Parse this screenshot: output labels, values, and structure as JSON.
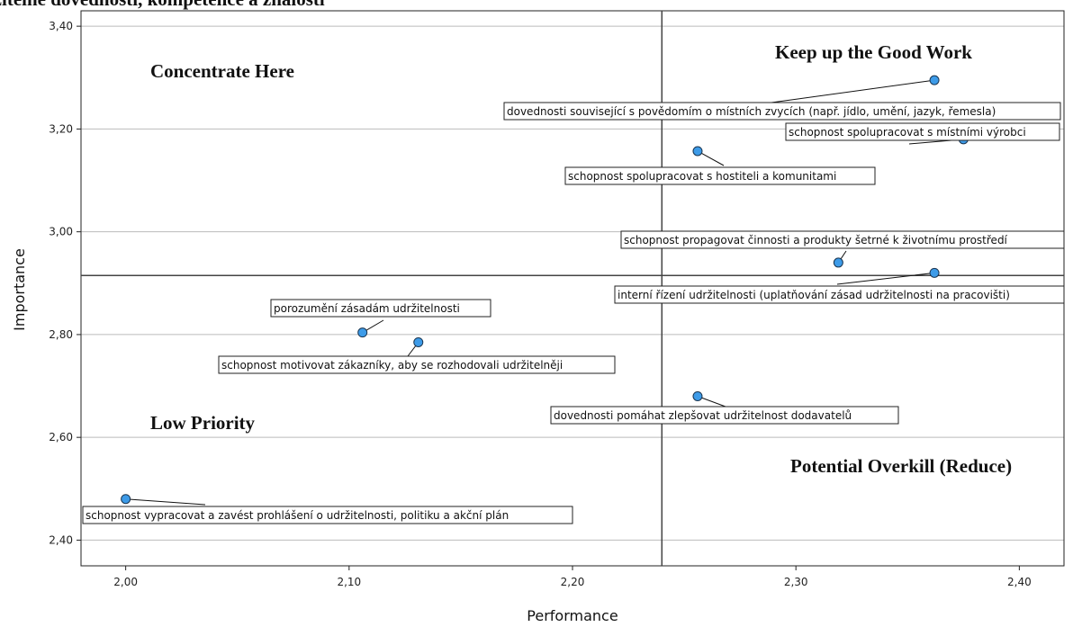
{
  "chart_data": {
    "type": "scatter",
    "title": "udržitelné dovednosti, kompetence a znalosti",
    "xlabel": "Performance",
    "ylabel": "Importance",
    "xlim": [
      1.98,
      2.42
    ],
    "ylim": [
      2.35,
      3.43
    ],
    "xticks": [
      "2,00",
      "2,10",
      "2,20",
      "2,30",
      "2,40"
    ],
    "yticks": [
      "2,40",
      "2,60",
      "2,80",
      "3,00",
      "3,20",
      "3,40"
    ],
    "grid": "horizontal",
    "reference_lines": {
      "x": 2.24,
      "y": 2.915
    },
    "quadrant_labels": {
      "top_left": "Concentrate Here",
      "top_right": "Keep up the Good Work",
      "bottom_left": "Low Priority",
      "bottom_right": "Potential Overkill (Reduce)"
    },
    "points": [
      {
        "label": "dovednosti související s povědomím o místních zvycích (např. jídlo, umění, jazyk, řemesla)",
        "x": 2.362,
        "y": 3.295
      },
      {
        "label": "schopnost spolupracovat s místními výrobci",
        "x": 2.375,
        "y": 3.18
      },
      {
        "label": "schopnost spolupracovat s hostiteli a komunitami",
        "x": 2.256,
        "y": 3.157
      },
      {
        "label": "schopnost propagovat činnosti a produkty šetrné k životnímu prostředí",
        "x": 2.319,
        "y": 2.94
      },
      {
        "label": "interní řízení udržitelnosti (uplatňování zásad udržitelnosti na pracovišti)",
        "x": 2.362,
        "y": 2.92
      },
      {
        "label": "porozumění zásadám udržitelnosti",
        "x": 2.106,
        "y": 2.804
      },
      {
        "label": "schopnost motivovat zákazníky, aby se rozhodovali udržitelněji",
        "x": 2.131,
        "y": 2.785
      },
      {
        "label": "dovednosti pomáhat zlepšovat udržitelnost dodavatelů",
        "x": 2.256,
        "y": 2.68
      },
      {
        "label": "schopnost vypracovat a zavést prohlášení o udržitelnosti, politiku a akční plán",
        "x": 2.0,
        "y": 2.48
      }
    ]
  },
  "colors": {
    "point_fill": "#3d9be8",
    "point_stroke": "#1a3550",
    "grid": "#bbbbbb",
    "reference": "#444444"
  }
}
